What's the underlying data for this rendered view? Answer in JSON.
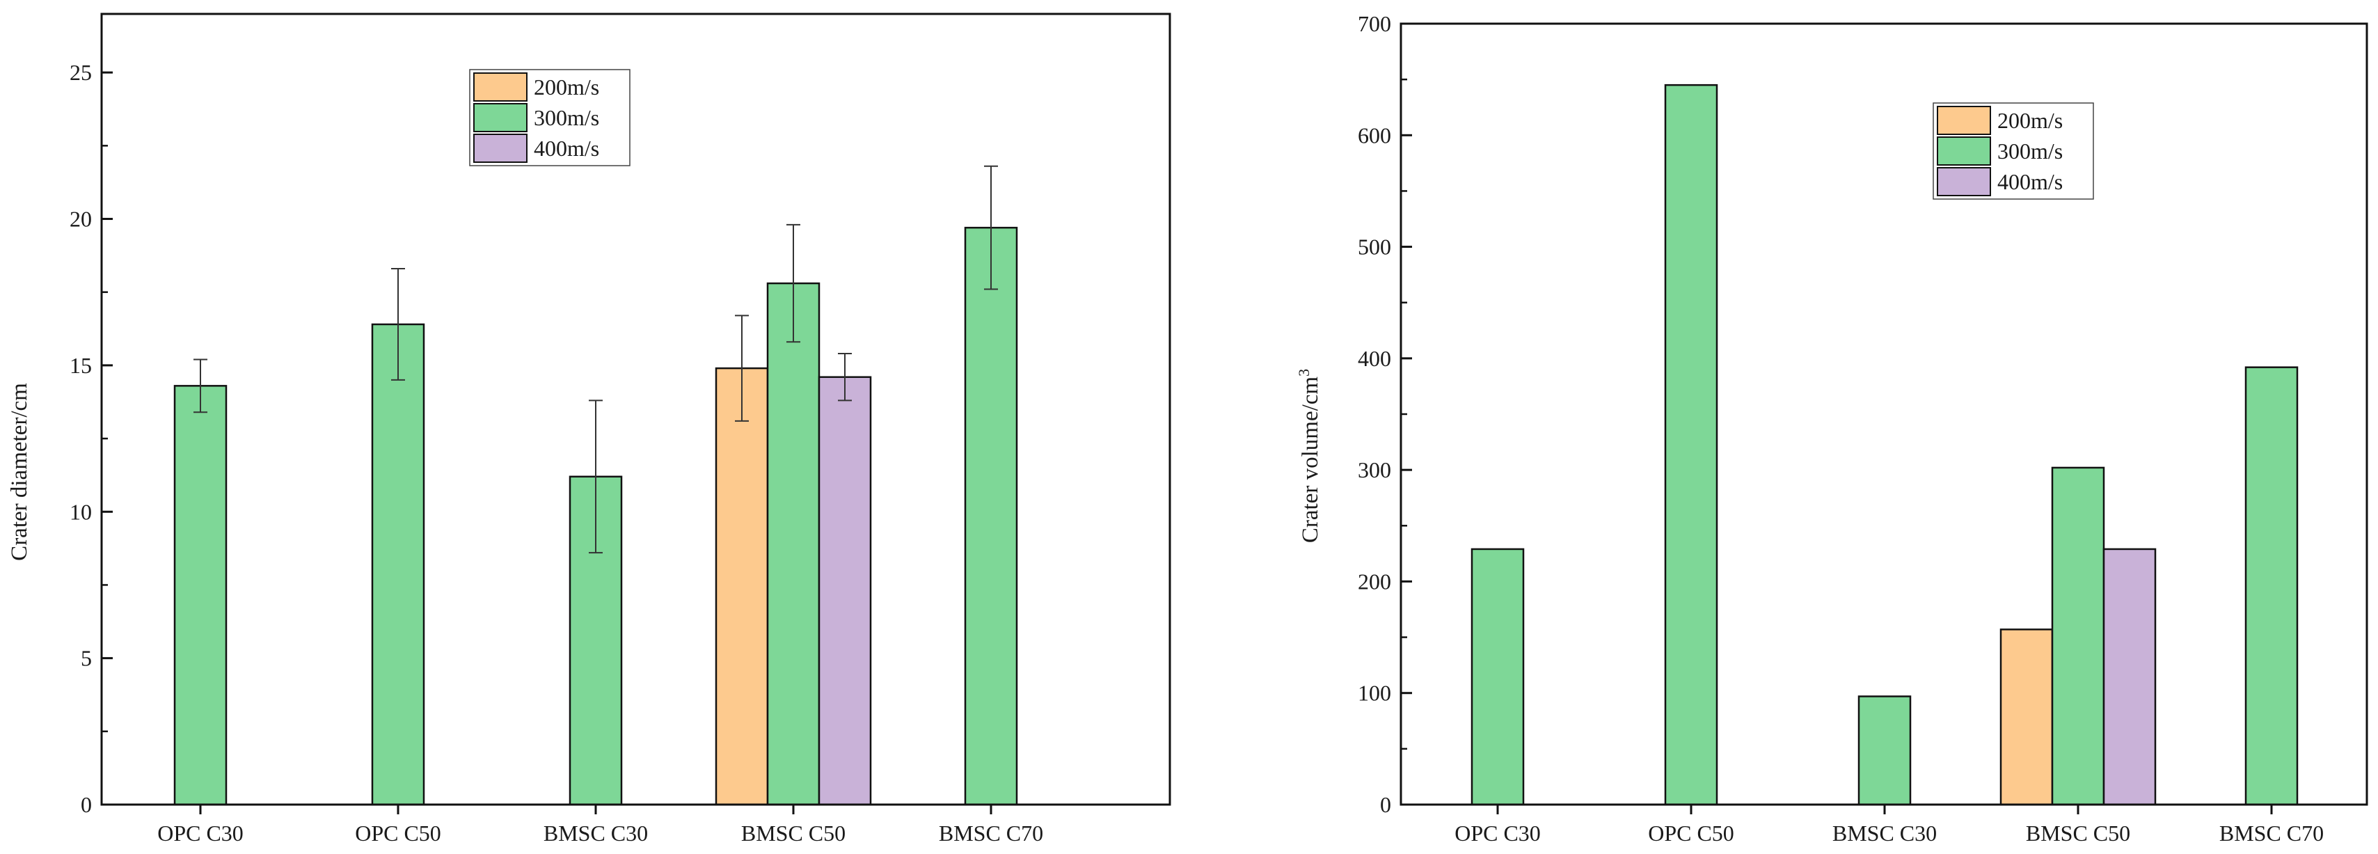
{
  "colors": {
    "s200": "#FDCA8E",
    "s300": "#7ED797",
    "s400": "#C9B2D8",
    "axis": "#111111",
    "bar_edge": "#111111",
    "errorbar": "#333333"
  },
  "chart_data": [
    {
      "type": "bar",
      "id": "diameter",
      "title": "",
      "xlabel": "",
      "ylabel": "Crater diameter/cm",
      "ylim": [
        0,
        27
      ],
      "yticks": [
        0,
        5,
        10,
        15,
        20,
        25
      ],
      "ytick_labels": [
        "0",
        "5",
        "10",
        "15",
        "20",
        "25"
      ],
      "categories": [
        "OPC C30",
        "OPC C50",
        "BMSC C30",
        "BMSC C50",
        "BMSC C70"
      ],
      "legend": {
        "position": "top-center",
        "entries": [
          "200m/s",
          "300m/s",
          "400m/s"
        ]
      },
      "series": [
        {
          "name": "200m/s",
          "color_key": "s200",
          "values": [
            null,
            null,
            null,
            14.9,
            null
          ],
          "err": [
            null,
            null,
            null,
            1.8,
            null
          ]
        },
        {
          "name": "300m/s",
          "color_key": "s300",
          "values": [
            14.3,
            16.4,
            11.2,
            17.8,
            19.7
          ],
          "err": [
            0.9,
            1.9,
            2.6,
            2.0,
            2.1
          ]
        },
        {
          "name": "400m/s",
          "color_key": "s400",
          "values": [
            null,
            null,
            null,
            14.6,
            null
          ],
          "err": [
            null,
            null,
            null,
            0.8,
            null
          ]
        }
      ]
    },
    {
      "type": "bar",
      "id": "volume",
      "title": "",
      "xlabel": "",
      "ylabel": "Crater volume/cm",
      "ylabel_sup": "3",
      "ylim": [
        0,
        700
      ],
      "yticks": [
        0,
        100,
        200,
        300,
        400,
        500,
        600,
        700
      ],
      "ytick_labels": [
        "0",
        "100",
        "200",
        "300",
        "400",
        "500",
        "600",
        "700"
      ],
      "categories": [
        "OPC C30",
        "OPC C50",
        "BMSC C30",
        "BMSC C50",
        "BMSC C70"
      ],
      "legend": {
        "position": "top-right",
        "entries": [
          "200m/s",
          "300m/s",
          "400m/s"
        ]
      },
      "series": [
        {
          "name": "200m/s",
          "color_key": "s200",
          "values": [
            null,
            null,
            null,
            157,
            null
          ]
        },
        {
          "name": "300m/s",
          "color_key": "s300",
          "values": [
            229,
            645,
            97,
            302,
            392
          ]
        },
        {
          "name": "400m/s",
          "color_key": "s400",
          "values": [
            null,
            null,
            null,
            229,
            null
          ]
        }
      ]
    }
  ]
}
